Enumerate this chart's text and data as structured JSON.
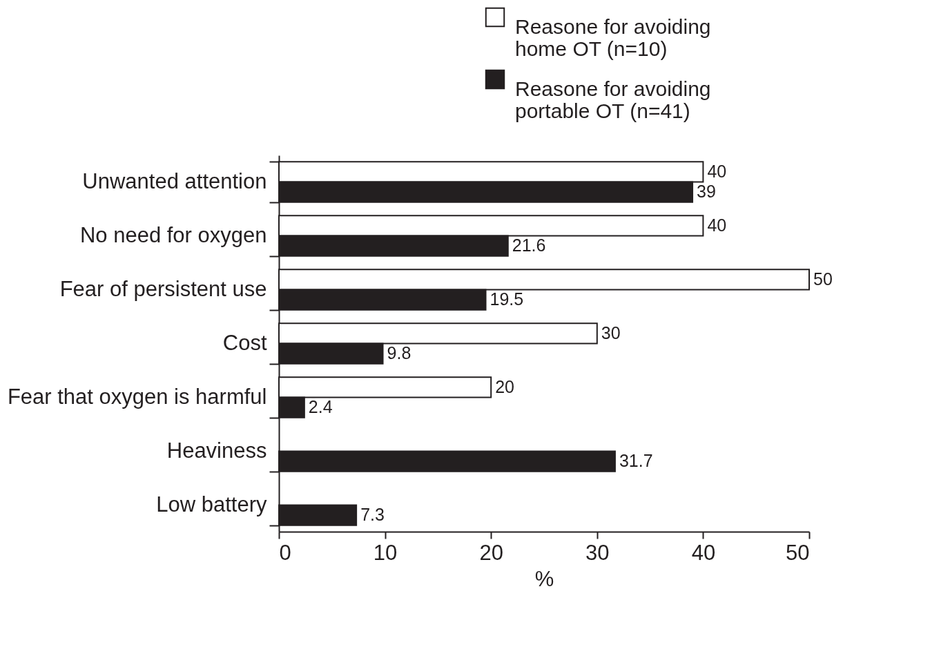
{
  "chart_data": {
    "type": "bar",
    "orientation": "horizontal",
    "xlabel": "%",
    "categories": [
      "Unwanted attention",
      "No need for oxygen",
      "Fear of persistent use",
      "Cost",
      "Fear that oxygen is harmful",
      "Heaviness",
      "Low battery"
    ],
    "series": [
      {
        "name": "Reasone for avoiding home OT (n=10)",
        "color": "#ffffff",
        "values": [
          40,
          40,
          50,
          30,
          20,
          null,
          null
        ]
      },
      {
        "name": "Reasone for avoiding portable OT (n=41)",
        "color": "#231f20",
        "values": [
          39,
          21.6,
          19.5,
          9.8,
          2.4,
          31.7,
          7.3
        ]
      }
    ],
    "xlim": [
      0,
      50
    ],
    "xticks": [
      0,
      10,
      20,
      30,
      40,
      50
    ],
    "data_labels": true,
    "legend": "top right",
    "grid": false
  }
}
